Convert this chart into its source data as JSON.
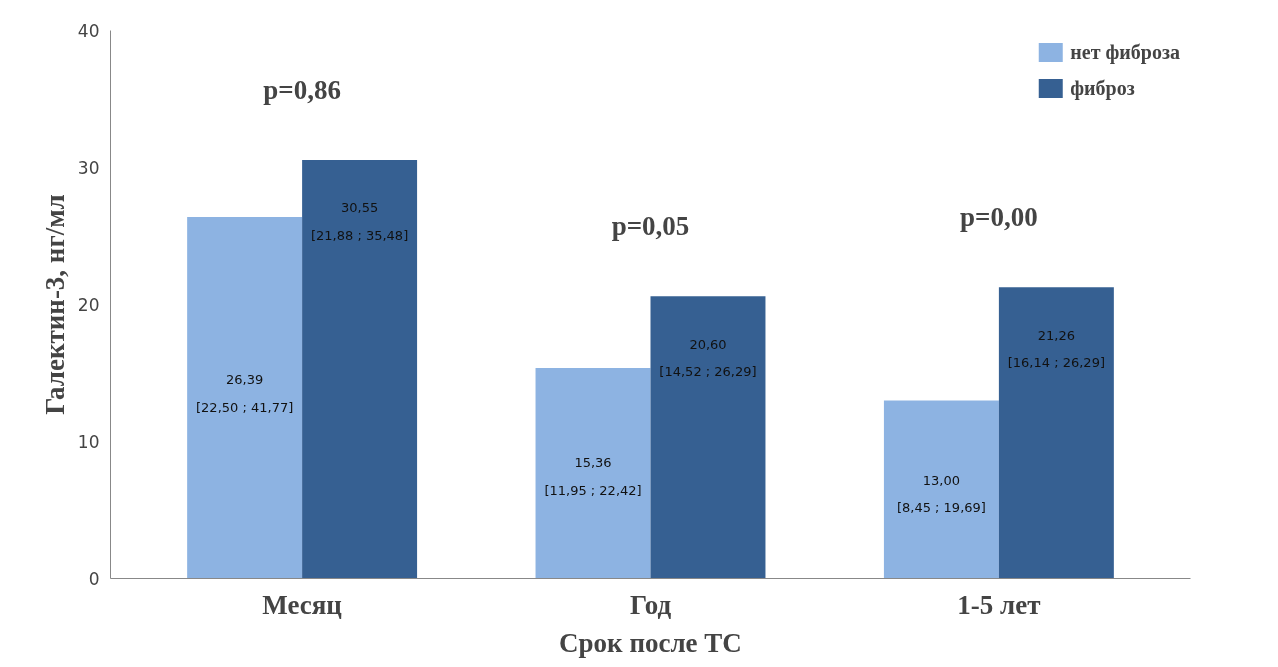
{
  "chart_data": {
    "type": "bar",
    "xlabel": "Срок после ТС",
    "ylabel": "Галектин-3, нг/мл",
    "categories": [
      "Месяц",
      "Год",
      "1-5 лет"
    ],
    "series": [
      {
        "name": "нет фиброза",
        "color": "#8db3e2",
        "values": [
          26.39,
          15.36,
          13.0
        ],
        "value_labels": [
          "26,39\n[22,50 ; 41,77]",
          "15,36\n[11,95 ; 22,42]",
          "13,00\n[8,45 ; 19,69]"
        ]
      },
      {
        "name": "фиброз",
        "color": "#366092",
        "values": [
          30.55,
          20.6,
          21.26
        ],
        "value_labels": [
          "30,55\n[21,88 ; 35,48]",
          "20,60\n[14,52 ; 26,29]",
          "21,26\n[16,14 ; 26,29]"
        ]
      }
    ],
    "annotations": [
      "p=0,86",
      "p=0,05",
      "p=0,00"
    ],
    "ylim": [
      0,
      40
    ],
    "yticks": [
      0,
      10,
      20,
      30,
      40
    ],
    "grid": false,
    "legend": "top right"
  }
}
